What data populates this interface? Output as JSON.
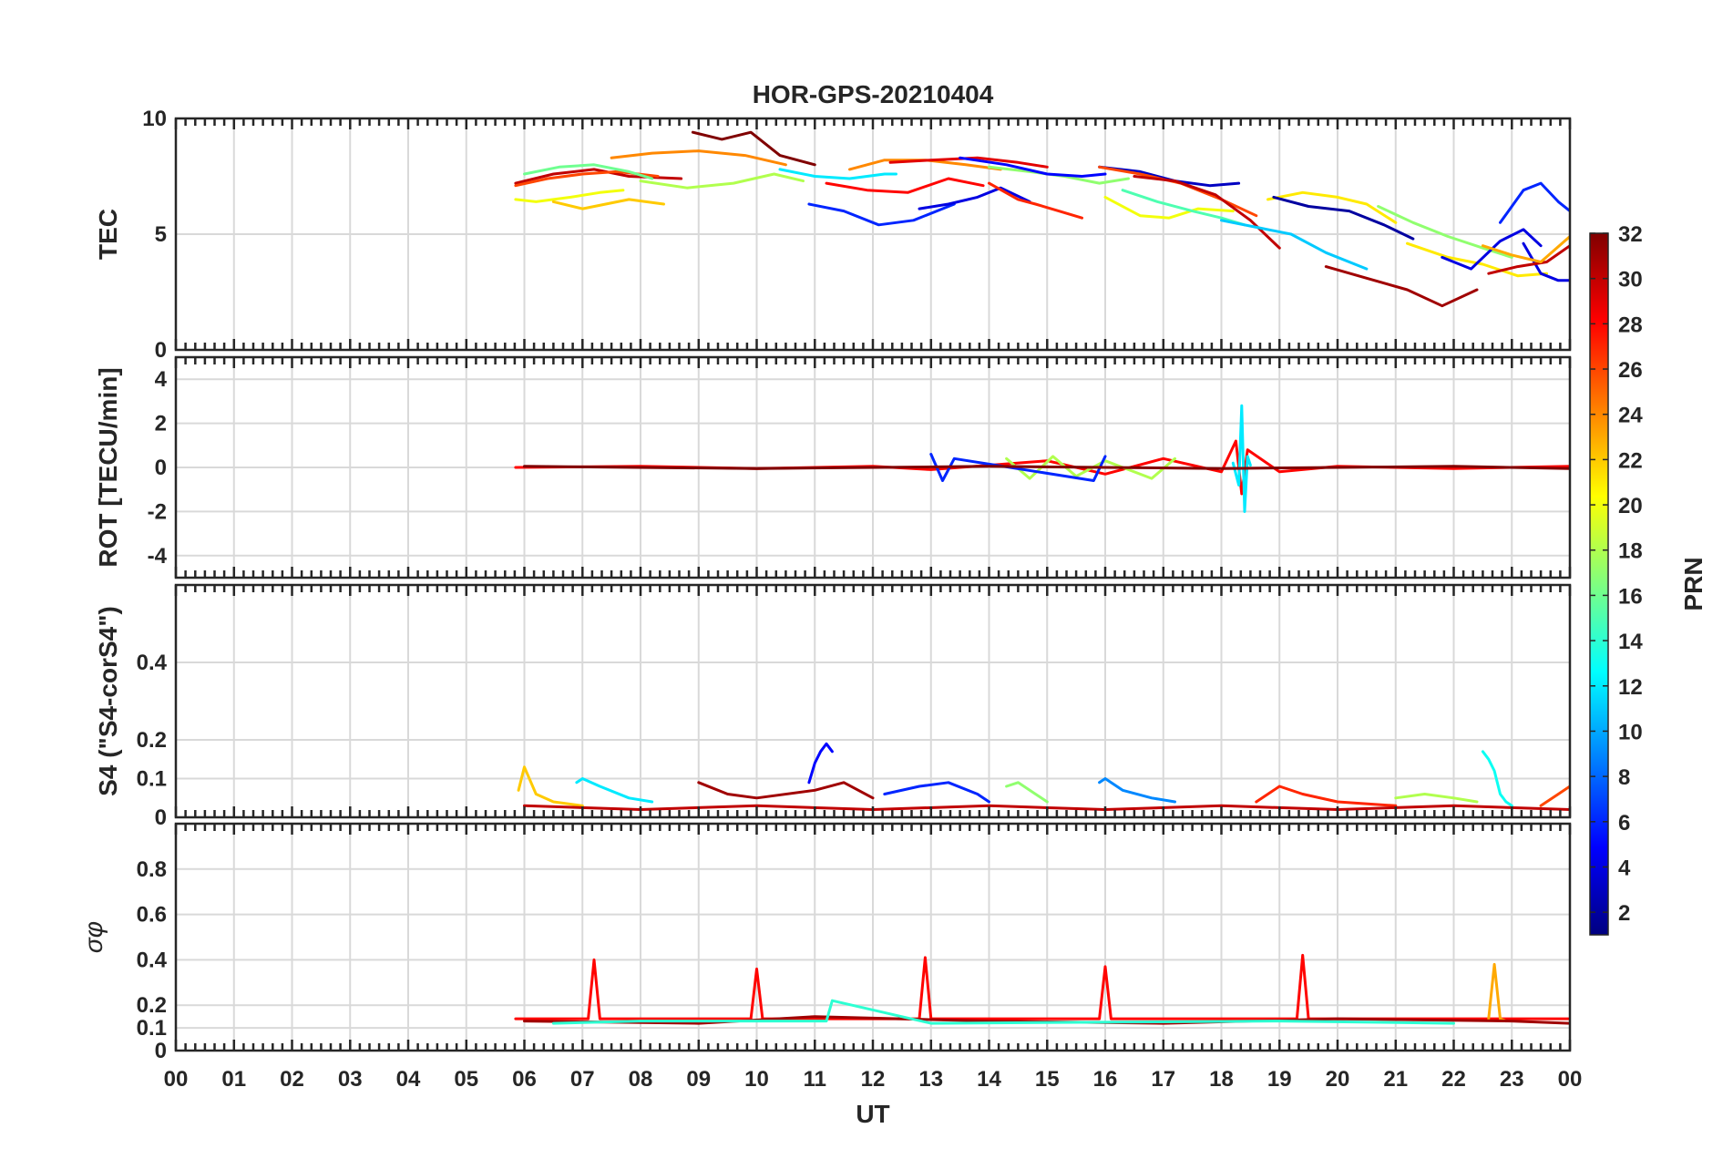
{
  "chart_data": {
    "type": "line",
    "title": "HOR-GPS-20210404",
    "xlabel": "UT",
    "x_tick_labels": [
      "00",
      "01",
      "02",
      "03",
      "04",
      "05",
      "06",
      "07",
      "08",
      "09",
      "10",
      "11",
      "12",
      "13",
      "14",
      "15",
      "16",
      "17",
      "18",
      "19",
      "20",
      "21",
      "22",
      "23",
      "00"
    ],
    "xlim_hours": [
      0,
      24
    ],
    "grid": true,
    "colorbar": {
      "label": "PRN",
      "range": [
        1,
        32
      ],
      "tick_labels": [
        "2",
        "4",
        "6",
        "8",
        "10",
        "12",
        "14",
        "16",
        "18",
        "20",
        "22",
        "24",
        "26",
        "28",
        "30",
        "32"
      ],
      "colormap": "jet"
    },
    "panels": [
      {
        "ylabel": "TEC",
        "ylim": [
          0,
          10
        ],
        "y_tick_labels": [
          "0",
          "5",
          "10"
        ],
        "series": [
          {
            "prn": 30,
            "x": [
              5.85,
              6.5,
              7.2,
              7.8,
              8.7
            ],
            "y": [
              7.2,
              7.6,
              7.8,
              7.5,
              7.4
            ]
          },
          {
            "prn": 26,
            "x": [
              5.85,
              6.4,
              7.0,
              7.6,
              8.3
            ],
            "y": [
              7.1,
              7.4,
              7.6,
              7.7,
              7.5
            ]
          },
          {
            "prn": 20,
            "x": [
              5.85,
              6.2,
              6.8,
              7.3,
              7.7
            ],
            "y": [
              6.5,
              6.4,
              6.6,
              6.8,
              6.9
            ]
          },
          {
            "prn": 22,
            "x": [
              6.5,
              7.0,
              7.4,
              7.8,
              8.4
            ],
            "y": [
              6.4,
              6.1,
              6.3,
              6.5,
              6.3
            ]
          },
          {
            "prn": 16,
            "x": [
              6.0,
              6.6,
              7.2,
              7.8,
              8.2
            ],
            "y": [
              7.6,
              7.9,
              8.0,
              7.7,
              7.4
            ]
          },
          {
            "prn": 24,
            "x": [
              7.5,
              8.2,
              9.0,
              9.8,
              10.5
            ],
            "y": [
              8.3,
              8.5,
              8.6,
              8.4,
              8.0
            ]
          },
          {
            "prn": 32,
            "x": [
              8.9,
              9.4,
              9.9,
              10.4,
              11.0
            ],
            "y": [
              9.4,
              9.1,
              9.4,
              8.4,
              8.0
            ]
          },
          {
            "prn": 18,
            "x": [
              8.0,
              8.8,
              9.6,
              10.3,
              10.8
            ],
            "y": [
              7.3,
              7.0,
              7.2,
              7.6,
              7.3
            ]
          },
          {
            "prn": 12,
            "x": [
              10.4,
              11.0,
              11.6,
              12.2,
              12.4
            ],
            "y": [
              7.8,
              7.5,
              7.4,
              7.6,
              7.6
            ]
          },
          {
            "prn": 28,
            "x": [
              11.2,
              11.9,
              12.6,
              13.3,
              13.9
            ],
            "y": [
              7.2,
              6.9,
              6.8,
              7.4,
              7.1
            ]
          },
          {
            "prn": 6,
            "x": [
              10.9,
              11.5,
              12.1,
              12.7,
              13.4
            ],
            "y": [
              6.3,
              6.0,
              5.4,
              5.6,
              6.3
            ]
          },
          {
            "prn": 24,
            "x": [
              11.6,
              12.2,
              12.9,
              13.6,
              14.2
            ],
            "y": [
              7.8,
              8.2,
              8.2,
              8.0,
              7.8
            ]
          },
          {
            "prn": 4,
            "x": [
              12.8,
              13.3,
              13.8,
              14.2,
              14.7
            ],
            "y": [
              6.1,
              6.3,
              6.6,
              7.0,
              6.4
            ]
          },
          {
            "prn": 29,
            "x": [
              12.3,
              13.0,
              13.8,
              14.5,
              15.0
            ],
            "y": [
              8.1,
              8.2,
              8.3,
              8.1,
              7.9
            ]
          },
          {
            "prn": 27,
            "x": [
              14.0,
              14.5,
              14.8,
              15.2,
              15.6
            ],
            "y": [
              7.2,
              6.5,
              6.3,
              6.0,
              5.7
            ]
          },
          {
            "prn": 17,
            "x": [
              14.0,
              14.7,
              15.3,
              15.9,
              16.4
            ],
            "y": [
              7.9,
              7.7,
              7.5,
              7.2,
              7.4
            ]
          },
          {
            "prn": 5,
            "x": [
              13.5,
              14.3,
              15.0,
              15.6,
              16.0
            ],
            "y": [
              8.3,
              8.0,
              7.6,
              7.5,
              7.6
            ]
          },
          {
            "prn": 3,
            "x": [
              15.9,
              16.6,
              17.2,
              17.8,
              18.3
            ],
            "y": [
              7.9,
              7.7,
              7.3,
              7.1,
              7.2
            ]
          },
          {
            "prn": 20,
            "x": [
              16.0,
              16.6,
              17.1,
              17.6,
              18.2
            ],
            "y": [
              6.6,
              5.8,
              5.7,
              6.1,
              6.0
            ]
          },
          {
            "prn": 15,
            "x": [
              16.3,
              16.9,
              17.5,
              18.0,
              18.4
            ],
            "y": [
              6.9,
              6.4,
              6.0,
              5.7,
              5.4
            ]
          },
          {
            "prn": 26,
            "x": [
              15.9,
              16.6,
              17.3,
              18.0,
              18.6
            ],
            "y": [
              7.9,
              7.6,
              7.2,
              6.5,
              5.8
            ]
          },
          {
            "prn": 30,
            "x": [
              16.5,
              17.2,
              17.9,
              18.5,
              19.0
            ],
            "y": [
              7.5,
              7.3,
              6.7,
              5.6,
              4.4
            ]
          },
          {
            "prn": 11,
            "x": [
              18.0,
              18.6,
              19.2,
              19.8,
              20.5
            ],
            "y": [
              5.6,
              5.3,
              5.0,
              4.2,
              3.5
            ]
          },
          {
            "prn": 21,
            "x": [
              18.8,
              19.4,
              20.0,
              20.5,
              21.0
            ],
            "y": [
              6.5,
              6.8,
              6.6,
              6.3,
              5.5
            ]
          },
          {
            "prn": 2,
            "x": [
              18.9,
              19.5,
              20.2,
              20.8,
              21.3
            ],
            "y": [
              6.6,
              6.2,
              6.0,
              5.4,
              4.8
            ]
          },
          {
            "prn": 31,
            "x": [
              19.8,
              20.5,
              21.2,
              21.8,
              22.4
            ],
            "y": [
              3.6,
              3.1,
              2.6,
              1.9,
              2.6
            ]
          },
          {
            "prn": 17,
            "x": [
              20.7,
              21.3,
              21.9,
              22.5,
              23.0
            ],
            "y": [
              6.2,
              5.5,
              4.9,
              4.4,
              4.0
            ]
          },
          {
            "prn": 21,
            "x": [
              21.2,
              21.9,
              22.5,
              23.1,
              23.6
            ],
            "y": [
              4.6,
              4.0,
              3.7,
              3.2,
              3.3
            ]
          },
          {
            "prn": 4,
            "x": [
              21.8,
              22.3,
              22.8,
              23.2,
              23.5
            ],
            "y": [
              4.0,
              3.5,
              4.7,
              5.2,
              4.5
            ]
          },
          {
            "prn": 6,
            "x": [
              22.8,
              23.2,
              23.5,
              23.8,
              24.0
            ],
            "y": [
              5.5,
              6.9,
              7.2,
              6.4,
              6.0
            ]
          },
          {
            "prn": 4,
            "x": [
              23.2,
              23.5,
              23.8,
              24.0
            ],
            "y": [
              4.6,
              3.3,
              3.0,
              3.0
            ]
          },
          {
            "prn": 30,
            "x": [
              22.6,
              23.1,
              23.6,
              24.0
            ],
            "y": [
              3.3,
              3.6,
              3.8,
              4.5
            ]
          },
          {
            "prn": 23,
            "x": [
              22.5,
              23.0,
              23.5,
              24.0
            ],
            "y": [
              4.5,
              4.1,
              3.8,
              4.9
            ]
          }
        ]
      },
      {
        "ylabel": "ROT [TECU/min]",
        "ylim": [
          -5,
          5
        ],
        "y_tick_labels": [
          "-4",
          "-2",
          "0",
          "2",
          "4"
        ],
        "series": [
          {
            "prn": 28,
            "x": [
              5.85,
              8.0,
              10.0,
              12.0,
              13.0,
              14.0,
              15.0,
              16.0,
              17.0,
              18.0,
              18.25,
              18.35,
              18.45,
              19.0,
              20.0,
              22.0,
              24.0
            ],
            "y": [
              0,
              0.05,
              -0.05,
              0.05,
              -0.1,
              0.1,
              0.3,
              -0.3,
              0.4,
              -0.2,
              1.2,
              -1.2,
              0.8,
              -0.2,
              0.05,
              -0.05,
              0.05
            ]
          },
          {
            "prn": 12,
            "x": [
              18.2,
              18.3,
              18.35,
              18.4,
              18.45,
              18.5
            ],
            "y": [
              0.2,
              -0.8,
              2.8,
              -2.0,
              0.5,
              0.1
            ]
          },
          {
            "prn": 18,
            "x": [
              14.3,
              14.7,
              15.1,
              15.5,
              16.0,
              16.8,
              17.2
            ],
            "y": [
              0.4,
              -0.5,
              0.5,
              -0.4,
              0.3,
              -0.5,
              0.4
            ]
          },
          {
            "prn": 6,
            "x": [
              13.0,
              13.2,
              13.4,
              15.8,
              16.0
            ],
            "y": [
              0.6,
              -0.6,
              0.4,
              -0.6,
              0.5
            ]
          },
          {
            "prn": 32,
            "x": [
              6.0,
              10.0,
              14.0,
              18.0,
              22.0,
              24.0
            ],
            "y": [
              0.05,
              -0.05,
              0.05,
              -0.05,
              0.05,
              -0.05
            ]
          }
        ]
      },
      {
        "ylabel": "S4 (\"S4-corS4\")",
        "ylim": [
          0,
          0.6
        ],
        "y_tick_labels": [
          "0",
          "0.1",
          "0.2",
          "0.4"
        ],
        "series": [
          {
            "prn": 5,
            "x": [
              10.9,
              11.0,
              11.1,
              11.2,
              11.3
            ],
            "y": [
              0.09,
              0.14,
              0.17,
              0.19,
              0.17
            ]
          },
          {
            "prn": 13,
            "x": [
              22.5,
              22.6,
              22.7,
              22.8,
              22.9,
              23.0
            ],
            "y": [
              0.17,
              0.15,
              0.12,
              0.06,
              0.04,
              0.03
            ]
          },
          {
            "prn": 22,
            "x": [
              5.9,
              6.0,
              6.2,
              6.5,
              7.0
            ],
            "y": [
              0.07,
              0.13,
              0.06,
              0.04,
              0.03
            ]
          },
          {
            "prn": 12,
            "x": [
              6.9,
              7.0,
              7.3,
              7.8,
              8.2
            ],
            "y": [
              0.09,
              0.1,
              0.08,
              0.05,
              0.04
            ]
          },
          {
            "prn": 31,
            "x": [
              9.0,
              9.5,
              10.0,
              11.0,
              11.5,
              12.0
            ],
            "y": [
              0.09,
              0.06,
              0.05,
              0.07,
              0.09,
              0.05
            ]
          },
          {
            "prn": 6,
            "x": [
              12.2,
              12.8,
              13.3,
              13.8,
              14.0
            ],
            "y": [
              0.06,
              0.08,
              0.09,
              0.06,
              0.04
            ]
          },
          {
            "prn": 9,
            "x": [
              15.9,
              16.0,
              16.3,
              16.8,
              17.2
            ],
            "y": [
              0.09,
              0.1,
              0.07,
              0.05,
              0.04
            ]
          },
          {
            "prn": 17,
            "x": [
              14.3,
              14.5,
              14.8,
              15.0
            ],
            "y": [
              0.08,
              0.09,
              0.06,
              0.04
            ]
          },
          {
            "prn": 27,
            "x": [
              18.6,
              19.0,
              19.4,
              20.0,
              21.0
            ],
            "y": [
              0.04,
              0.08,
              0.06,
              0.04,
              0.03
            ]
          },
          {
            "prn": 18,
            "x": [
              21.0,
              21.5,
              22.0,
              22.4
            ],
            "y": [
              0.05,
              0.06,
              0.05,
              0.04
            ]
          },
          {
            "prn": 26,
            "x": [
              23.5,
              23.8,
              24.0
            ],
            "y": [
              0.03,
              0.06,
              0.08
            ]
          },
          {
            "prn": 30,
            "x": [
              6.0,
              8.0,
              10.0,
              12.0,
              14.0,
              16.0,
              18.0,
              20.0,
              22.0,
              24.0
            ],
            "y": [
              0.03,
              0.02,
              0.03,
              0.02,
              0.03,
              0.02,
              0.03,
              0.02,
              0.03,
              0.02
            ]
          }
        ]
      },
      {
        "ylabel": "σφ",
        "ylim": [
          0,
          1
        ],
        "y_tick_labels": [
          "0",
          "0.1",
          "0.2",
          "0.4",
          "0.6",
          "0.8"
        ],
        "series": [
          {
            "prn": 28,
            "x": [
              5.85,
              7.1,
              7.2,
              7.3,
              9.9,
              10.0,
              10.1,
              12.8,
              12.9,
              13.0,
              15.9,
              16.0,
              16.1,
              19.3,
              19.4,
              19.5,
              24.0
            ],
            "y": [
              0.14,
              0.14,
              0.4,
              0.14,
              0.14,
              0.36,
              0.14,
              0.14,
              0.41,
              0.14,
              0.14,
              0.37,
              0.14,
              0.14,
              0.42,
              0.14,
              0.14
            ]
          },
          {
            "prn": 23,
            "x": [
              22.6,
              22.7,
              22.8,
              22.9
            ],
            "y": [
              0.14,
              0.38,
              0.14,
              0.13
            ]
          },
          {
            "prn": 31,
            "x": [
              6.0,
              9.0,
              11.0,
              14.0,
              17.0,
              20.0,
              23.0,
              24.0
            ],
            "y": [
              0.13,
              0.12,
              0.15,
              0.13,
              0.12,
              0.14,
              0.13,
              0.12
            ]
          },
          {
            "prn": 14,
            "x": [
              6.5,
              8.0,
              11.2,
              11.3,
              13.0,
              19.0,
              22.0
            ],
            "y": [
              0.12,
              0.13,
              0.13,
              0.22,
              0.12,
              0.13,
              0.12
            ]
          }
        ]
      }
    ]
  }
}
